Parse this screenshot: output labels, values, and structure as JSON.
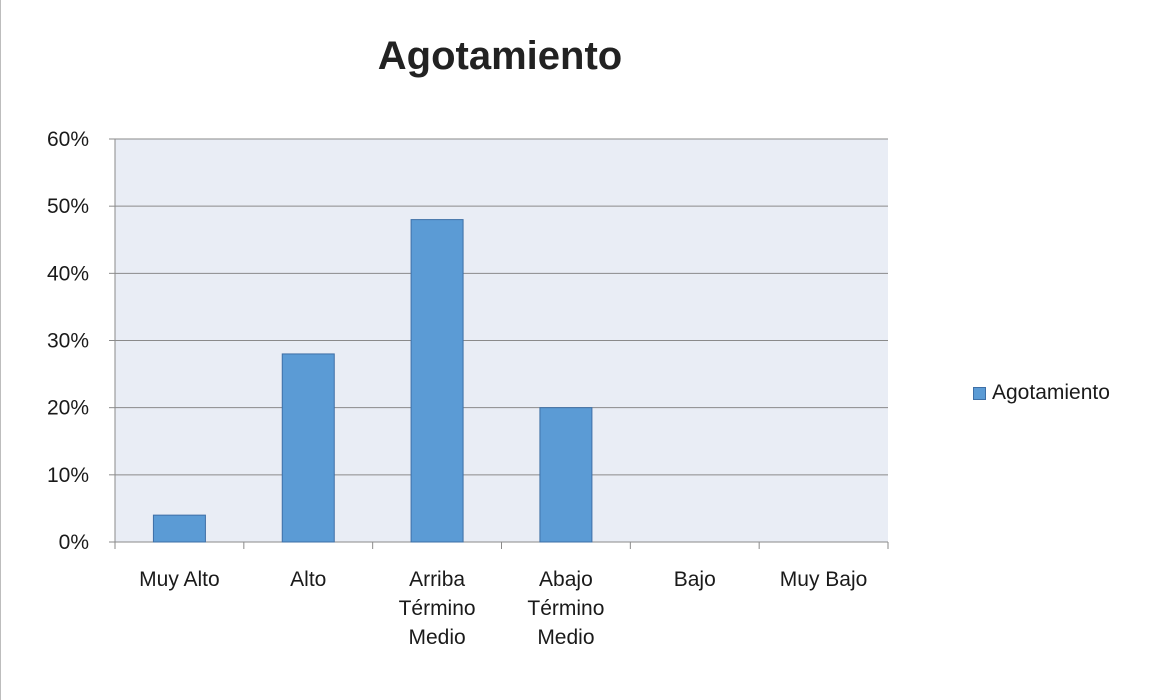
{
  "chart_data": {
    "type": "bar",
    "title": "Agotamiento",
    "categories": [
      "Muy Alto",
      "Alto",
      "Arriba Término Medio",
      "Abajo Término Medio",
      "Bajo",
      "Muy Bajo"
    ],
    "category_lines": [
      [
        "Muy Alto"
      ],
      [
        "Alto"
      ],
      [
        "Arriba",
        "Término",
        "Medio"
      ],
      [
        "Abajo",
        "Término",
        "Medio"
      ],
      [
        "Bajo"
      ],
      [
        "Muy Bajo"
      ]
    ],
    "series": [
      {
        "name": "Agotamiento",
        "values": [
          4,
          28,
          48,
          20,
          0,
          0
        ]
      }
    ],
    "y_ticks": [
      "0%",
      "10%",
      "20%",
      "30%",
      "40%",
      "50%",
      "60%"
    ],
    "ylim": [
      0,
      60
    ],
    "y_unit": "%",
    "grid": true,
    "legend_position": "right",
    "colors": {
      "bar_fill": "#5b9bd5",
      "bar_stroke": "#3e6fa6",
      "plot_background": "#e9edf5",
      "gridline": "#8a8a8a",
      "axis": "#8a8a8a"
    }
  }
}
